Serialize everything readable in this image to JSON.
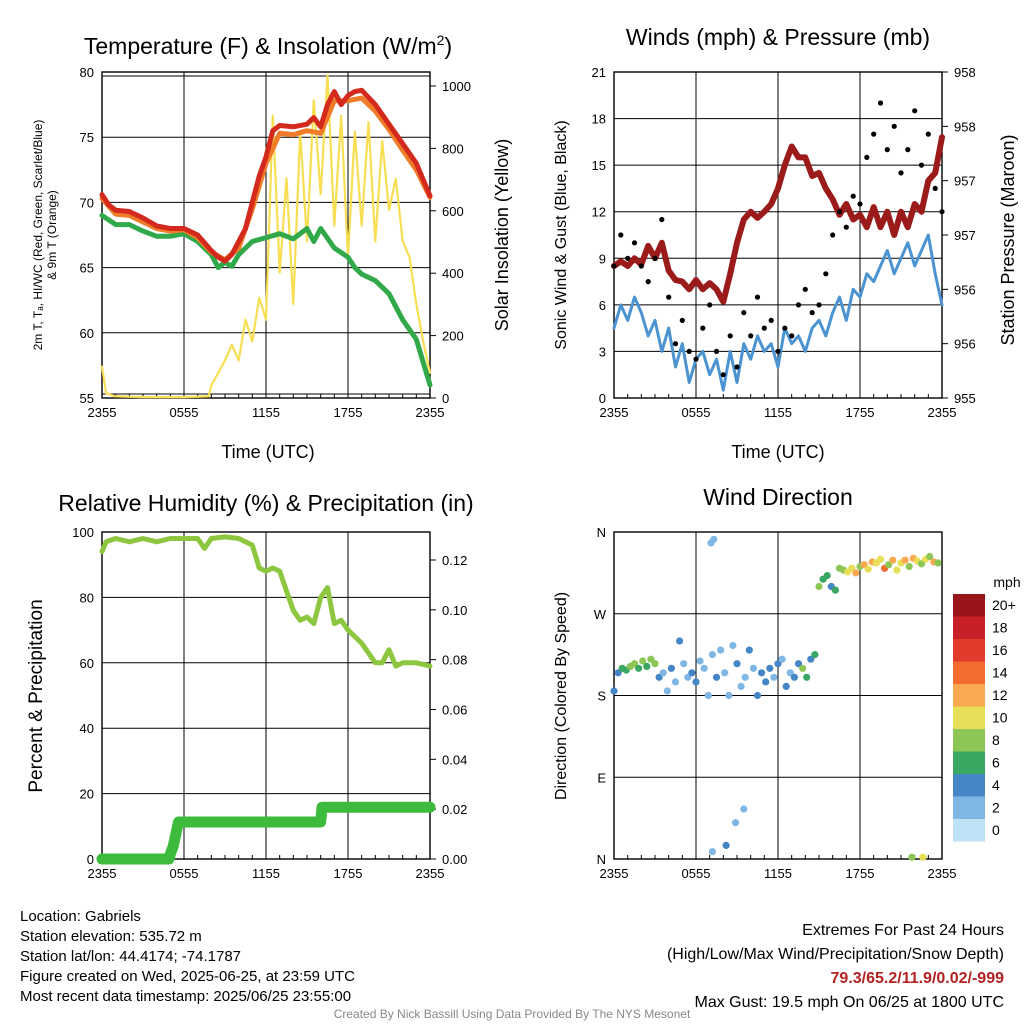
{
  "colors": {
    "t2m": "#d42a1e",
    "dew": "#4fb043",
    "heat": "#31a84a",
    "t9m": "#f07b28",
    "solar": "#f7de52",
    "sonic": "#4b94d1",
    "gust": "#000000",
    "pressure": "#9b1b1b",
    "rh": "#8dc63f",
    "precip": "#3dbb3d"
  },
  "chart_data": [
    {
      "id": "temp",
      "type": "line",
      "title": "Temperature (F) & Insolation (W/m²)",
      "xlabel": "Time (UTC)",
      "ylabel_lines": [
        "2m T, Tₐ, HI/WC (Red, Green, Scarlet/Blue)",
        "& 9m T (Orange)"
      ],
      "y2label": "Solar Insolation (Yellow)",
      "x_ticks": [
        "2355",
        "0555",
        "1155",
        "1755",
        "2355"
      ],
      "y_ticks": [
        "80",
        "75",
        "70",
        "65",
        "60",
        "55"
      ],
      "y2_ticks": [
        "1000",
        "800",
        "600",
        "400",
        "200",
        "0"
      ],
      "ylim": [
        55,
        80
      ],
      "y2lim": [
        0,
        1040
      ],
      "x_hours": [
        0,
        24
      ],
      "series": [
        {
          "key": "solar",
          "axis": "y2",
          "x": [
            0,
            0.3,
            1,
            3,
            5,
            6,
            7.8,
            8.0,
            8.5,
            9.0,
            9.5,
            10,
            10.5,
            11,
            11.5,
            12,
            12.5,
            13,
            13.5,
            14,
            14.5,
            15,
            15.5,
            16,
            16.5,
            17,
            17.5,
            18,
            18.5,
            19,
            19.5,
            20,
            20.5,
            21,
            21.5,
            22,
            22.5,
            23,
            23.5,
            24
          ],
          "values": [
            100,
            15,
            5,
            3,
            3,
            3,
            5,
            40,
            80,
            120,
            170,
            120,
            250,
            180,
            320,
            250,
            900,
            400,
            700,
            300,
            850,
            500,
            950,
            650,
            1030,
            550,
            900,
            450,
            850,
            550,
            880,
            500,
            820,
            600,
            700,
            500,
            450,
            300,
            180,
            80
          ]
        },
        {
          "key": "heat",
          "axis": "y",
          "x": [
            0,
            1,
            2,
            3,
            4,
            5,
            6,
            7,
            8,
            8.5,
            9,
            9.5,
            10,
            11,
            12,
            13,
            14,
            15,
            15.5,
            16,
            17,
            18,
            18.5,
            19,
            20,
            21,
            22,
            23,
            24
          ],
          "values": [
            69,
            68.3,
            68.3,
            67.8,
            67.4,
            67.4,
            67.6,
            67.0,
            66.0,
            65.0,
            65.4,
            65.1,
            66.0,
            67.0,
            67.3,
            67.6,
            67.2,
            68.0,
            67.0,
            68.0,
            66.5,
            65.8,
            65.0,
            64.5,
            64.0,
            63.0,
            61.0,
            59.5,
            56.0
          ]
        },
        {
          "key": "t2m",
          "axis": "y",
          "x": [
            0,
            0.5,
            1,
            2,
            3,
            4,
            5,
            6,
            7,
            8,
            8.5,
            9,
            9.5,
            10,
            10.5,
            11,
            11.5,
            12,
            12.5,
            13,
            14,
            15,
            15.5,
            16,
            16.5,
            17,
            17.5,
            18,
            18.5,
            19,
            20,
            21,
            22,
            23,
            24
          ],
          "values": [
            70.6,
            69.8,
            69.4,
            69.3,
            68.8,
            68.2,
            68.0,
            68.0,
            67.5,
            66.3,
            65.8,
            65.5,
            66.0,
            67.0,
            68.0,
            70.0,
            72.0,
            73.5,
            75.5,
            75.9,
            75.8,
            76.0,
            76.5,
            75.8,
            77.5,
            78.5,
            77.5,
            78.2,
            78.5,
            78.6,
            77.5,
            76.0,
            74.5,
            73.0,
            70.5
          ]
        },
        {
          "key": "t9m",
          "axis": "y",
          "x": [
            0,
            1,
            2,
            3,
            4,
            5,
            6,
            7,
            8,
            9,
            10,
            11,
            12,
            13,
            14,
            15,
            16,
            17,
            18,
            19,
            20,
            21,
            22,
            23,
            24
          ],
          "values": [
            70.3,
            69.1,
            69.0,
            68.5,
            68.0,
            67.8,
            67.9,
            67.3,
            66.2,
            65.6,
            66.5,
            69.5,
            73.0,
            75.3,
            75.2,
            75.5,
            75.3,
            77.8,
            77.8,
            78.0,
            77.0,
            75.6,
            74.0,
            72.5,
            70.4
          ]
        }
      ]
    },
    {
      "id": "wind",
      "type": "line",
      "title": "Winds (mph) & Pressure (mb)",
      "xlabel": "Time (UTC)",
      "ylabel": "Sonic Wind & Gust (Blue, Black)",
      "y2label": "Station Pressure (Maroon)",
      "x_ticks": [
        "2355",
        "0555",
        "1155",
        "1755",
        "2355"
      ],
      "y_ticks": [
        "21",
        "18",
        "15",
        "12",
        "9",
        "6",
        "3",
        "0"
      ],
      "y2_ticks": [
        "958",
        "958",
        "957",
        "957",
        "956",
        "956",
        "955"
      ],
      "ylim": [
        0,
        21
      ],
      "x_hours": [
        0,
        24
      ],
      "series": [
        {
          "key": "sonic",
          "name": "Sonic Wind",
          "x": [
            0,
            0.5,
            1,
            1.5,
            2,
            2.5,
            3,
            3.5,
            4,
            4.5,
            5,
            5.5,
            6,
            6.5,
            7,
            7.5,
            8,
            8.5,
            9,
            9.5,
            10,
            10.5,
            11,
            11.5,
            12,
            12.5,
            13,
            13.5,
            14,
            14.5,
            15,
            15.5,
            16,
            16.5,
            17,
            17.5,
            18,
            18.5,
            19,
            19.5,
            20,
            20.5,
            21,
            21.5,
            22,
            22.5,
            23,
            23.5,
            24
          ],
          "values": [
            4.5,
            6.0,
            5.0,
            6.5,
            5.5,
            4.0,
            5.0,
            3.0,
            4.5,
            2.0,
            3.5,
            1.0,
            2.5,
            3.0,
            1.5,
            2.5,
            0.5,
            3.0,
            1.0,
            3.5,
            2.5,
            4.0,
            3.0,
            3.5,
            2.0,
            4.5,
            3.5,
            4.0,
            3.0,
            4.5,
            5.0,
            4.0,
            5.5,
            6.5,
            5.0,
            7.0,
            6.5,
            8.0,
            7.5,
            8.5,
            9.5,
            8.0,
            9.0,
            10.0,
            8.5,
            9.5,
            10.5,
            8.0,
            6.0
          ]
        },
        {
          "key": "gust",
          "name": "Gust",
          "x": [
            0,
            0.5,
            1,
            1.5,
            2,
            2.5,
            3,
            3.5,
            4,
            4.5,
            5,
            5.5,
            6,
            6.5,
            7,
            7.5,
            8,
            8.5,
            9,
            9.5,
            10,
            10.5,
            11,
            11.5,
            12,
            12.5,
            13,
            13.5,
            14,
            14.5,
            15,
            15.5,
            16,
            16.5,
            17,
            17.5,
            18,
            18.5,
            19,
            19.5,
            20,
            20.5,
            21,
            21.5,
            22,
            22.5,
            23,
            23.5,
            24
          ],
          "values": [
            8.5,
            10.5,
            9.0,
            10.0,
            8.5,
            7.5,
            9.0,
            11.5,
            6.5,
            3.5,
            5.0,
            3.0,
            2.5,
            4.5,
            6.0,
            3.0,
            1.5,
            4.0,
            2.0,
            5.5,
            4.0,
            6.5,
            4.5,
            5.0,
            3.0,
            4.5,
            4.0,
            6.0,
            7.0,
            5.5,
            6.0,
            8.0,
            10.5,
            12.0,
            11.0,
            13.0,
            12.5,
            15.5,
            17.0,
            19.0,
            16.0,
            17.5,
            14.5,
            16.0,
            18.5,
            15.0,
            17.0,
            13.5,
            12.0
          ]
        },
        {
          "key": "pressure",
          "name": "Station Pressure",
          "x": [
            0,
            0.5,
            1,
            1.5,
            2,
            2.5,
            3,
            3.5,
            4,
            4.5,
            5,
            5.5,
            6,
            6.5,
            7,
            7.5,
            8,
            8.5,
            9,
            9.5,
            10,
            10.5,
            11,
            11.5,
            12,
            12.5,
            13,
            13.5,
            14,
            14.5,
            15,
            15.5,
            16,
            16.5,
            17,
            17.5,
            18,
            18.5,
            19,
            19.5,
            20,
            20.5,
            21,
            21.5,
            22,
            22.5,
            23,
            23.5,
            24
          ],
          "values": [
            8.5,
            8.8,
            8.5,
            9.0,
            8.6,
            9.8,
            9.0,
            10.0,
            8.2,
            7.6,
            7.5,
            7.0,
            7.6,
            7.0,
            7.4,
            7.0,
            6.2,
            8.0,
            10.0,
            11.5,
            12.0,
            11.6,
            12.0,
            12.5,
            13.5,
            15.0,
            16.2,
            15.5,
            15.5,
            14.3,
            14.5,
            13.5,
            12.8,
            11.8,
            12.5,
            11.5,
            11.8,
            11.0,
            12.3,
            11.0,
            12.0,
            10.5,
            12.0,
            11.0,
            12.5,
            12.0,
            14.0,
            14.5,
            16.8
          ]
        }
      ]
    },
    {
      "id": "rh",
      "type": "line",
      "title": "Relative Humidity (%) & Precipitation (in)",
      "xlabel": "",
      "ylabel": "Percent & Precipitation",
      "x_ticks": [
        "2355",
        "0555",
        "1155",
        "1755",
        "2355"
      ],
      "y_ticks": [
        "100",
        "80",
        "60",
        "40",
        "20",
        "0"
      ],
      "y2_ticks": [
        "0.12",
        "0.10",
        "0.08",
        "0.06",
        "0.04",
        "0.02",
        "0.00"
      ],
      "ylim": [
        0,
        100
      ],
      "y2lim": [
        0,
        0.1325
      ],
      "x_hours": [
        0,
        24
      ],
      "series": [
        {
          "key": "rh",
          "axis": "y",
          "x": [
            0,
            0.3,
            1,
            2,
            3,
            4,
            5,
            6,
            7,
            7.5,
            8,
            9,
            10,
            11,
            11.5,
            12,
            12.5,
            13,
            13.5,
            14,
            14.5,
            15,
            15.5,
            16,
            16.5,
            17,
            17.5,
            18,
            18.5,
            19,
            20,
            20.5,
            21,
            21.5,
            22,
            23,
            24
          ],
          "values": [
            94,
            97,
            98,
            97,
            98,
            97,
            98,
            98,
            98,
            95,
            98,
            98.5,
            98,
            96,
            89,
            88,
            89,
            88,
            82,
            76,
            73,
            74,
            72,
            80,
            83,
            72,
            73,
            70,
            68,
            66,
            60,
            60,
            64,
            59,
            60,
            60,
            59
          ]
        },
        {
          "key": "precip",
          "axis": "y2",
          "x": [
            0,
            4.9,
            5.0,
            5.2,
            5.4,
            5.6,
            16.0,
            16.1,
            24
          ],
          "values": [
            0,
            0,
            0.002,
            0.005,
            0.01,
            0.015,
            0.015,
            0.021,
            0.021
          ]
        }
      ]
    },
    {
      "id": "direction",
      "type": "scatter",
      "title": "Wind Direction",
      "ylabel": "Direction (Colored By Speed)",
      "x_ticks": [
        "2355",
        "0555",
        "1155",
        "1755",
        "2355"
      ],
      "y_ticks": [
        "N",
        "W",
        "S",
        "E",
        "N"
      ],
      "ylim": [
        0,
        360
      ],
      "x_hours": [
        0,
        24
      ],
      "legend": {
        "title": "mph",
        "labels": [
          "20+",
          "18",
          "16",
          "14",
          "12",
          "10",
          "8",
          "6",
          "4",
          "2",
          "0"
        ],
        "colors": [
          "#98161a",
          "#c72026",
          "#e23b2b",
          "#f26b2f",
          "#f9a94f",
          "#e6df57",
          "#8cc655",
          "#3aa862",
          "#4586c6",
          "#7fb6e3",
          "#bfe3f6"
        ],
        "placement": "right"
      },
      "x": [
        0,
        0.3,
        0.6,
        0.9,
        1.2,
        1.5,
        1.8,
        2.1,
        2.4,
        2.7,
        3.0,
        3.3,
        3.6,
        3.9,
        4.2,
        4.5,
        4.8,
        5.1,
        5.4,
        5.7,
        6.0,
        6.3,
        6.6,
        6.9,
        7.2,
        7.5,
        7.8,
        8.1,
        8.4,
        8.7,
        9.0,
        9.3,
        9.6,
        9.9,
        10.2,
        10.5,
        10.8,
        11.1,
        11.4,
        11.7,
        12.0,
        12.3,
        12.6,
        12.9,
        13.2,
        13.5,
        13.8,
        14.1,
        14.4,
        14.7,
        15.0,
        15.3,
        15.6,
        15.9,
        16.2,
        16.5,
        16.8,
        17.1,
        17.4,
        17.7,
        18.0,
        18.3,
        18.6,
        18.9,
        19.2,
        19.5,
        19.8,
        20.1,
        20.4,
        20.7,
        21.0,
        21.3,
        21.6,
        21.9,
        22.2,
        22.5,
        22.8,
        23.1,
        23.4,
        23.7,
        7.1,
        7.3,
        8.2,
        8.9,
        9.5,
        7.2,
        21.8,
        22.6
      ],
      "values": [
        185,
        205,
        210,
        208,
        212,
        215,
        210,
        218,
        212,
        220,
        215,
        200,
        205,
        185,
        210,
        195,
        240,
        215,
        200,
        205,
        195,
        218,
        210,
        180,
        225,
        200,
        230,
        205,
        180,
        235,
        215,
        190,
        200,
        230,
        210,
        180,
        205,
        195,
        210,
        200,
        215,
        220,
        190,
        205,
        200,
        215,
        210,
        200,
        220,
        225,
        300,
        308,
        312,
        300,
        296,
        320,
        318,
        316,
        320,
        315,
        322,
        324,
        319,
        327,
        326,
        330,
        320,
        324,
        329,
        318,
        326,
        329,
        322,
        331,
        328,
        325,
        330,
        333,
        327,
        326,
        348,
        352,
        15,
        40,
        55,
        8,
        2,
        2
      ],
      "speeds": [
        3,
        4,
        5,
        6,
        7,
        7,
        6,
        7,
        6,
        7,
        7,
        3,
        2,
        1,
        3,
        2,
        3,
        1,
        2,
        3,
        3,
        2,
        1,
        1,
        2,
        3,
        1,
        2,
        1,
        2,
        3,
        2,
        1,
        3,
        2,
        3,
        3,
        4,
        3,
        2,
        3,
        2,
        3,
        2,
        3,
        4,
        7,
        5,
        3,
        6,
        7,
        6,
        5,
        4,
        6,
        7,
        8,
        9,
        10,
        11,
        8,
        12,
        9,
        11,
        9,
        10,
        13,
        8,
        12,
        10,
        9,
        12,
        8,
        11,
        10,
        7,
        9,
        8,
        11,
        8,
        1,
        1,
        3,
        2,
        1,
        1,
        7,
        9
      ]
    }
  ],
  "info": {
    "location": "Location: Gabriels",
    "elevation": "Station elevation: 535.72 m",
    "latlon": "Station lat/lon: 44.4174; -74.1787",
    "created": "Figure created on Wed, 2025-06-25, at 23:59 UTC",
    "recent": "Most recent data timestamp: 2025/06/25 23:55:00"
  },
  "extremes": {
    "title": "Extremes For Past 24 Hours",
    "subtitle": "(High/Low/Max Wind/Precipitation/Snow Depth)",
    "values": "79.3/65.2/11.9/0.02/-999",
    "gust": "Max Gust: 19.5 mph On 06/25 at 1800 UTC"
  },
  "credit": "Created By Nick Bassill Using Data Provided By The NYS Mesonet"
}
